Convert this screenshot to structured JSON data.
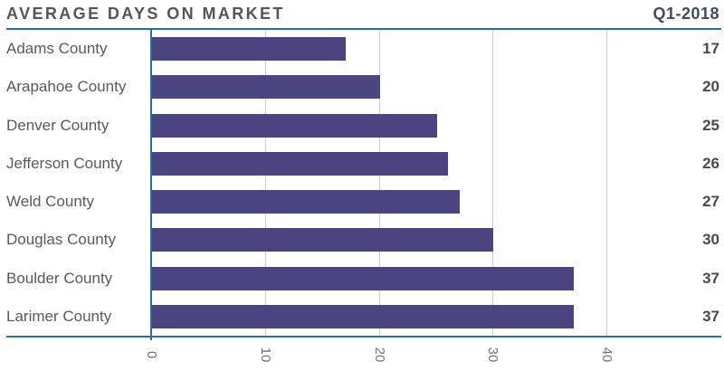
{
  "header": {
    "title": "AVERAGE DAYS ON MARKET",
    "period": "Q1-2018"
  },
  "chart_data": {
    "type": "bar",
    "orientation": "horizontal",
    "title": "AVERAGE DAYS ON MARKET",
    "subtitle": "Q1-2018",
    "categories": [
      "Adams County",
      "Arapahoe County",
      "Denver County",
      "Jefferson County",
      "Weld County",
      "Douglas County",
      "Boulder County",
      "Larimer County"
    ],
    "values": [
      17,
      20,
      25,
      26,
      27,
      30,
      37,
      37
    ],
    "xlabel": "",
    "ylabel": "",
    "xlim": [
      0,
      50
    ],
    "xticks": [
      0,
      10,
      20,
      30,
      40
    ],
    "grid": true,
    "value_labels_shown": true,
    "tick_label_rotation_deg": 90
  },
  "colors": {
    "bar": "#4a4480",
    "axis_line": "#2e6da4",
    "gridline": "#b7cfe6",
    "title_text": "#545559",
    "period_text": "#3e4d63",
    "category_text": "#58595b",
    "value_text": "#48494b",
    "tick_text": "#6f7072"
  }
}
